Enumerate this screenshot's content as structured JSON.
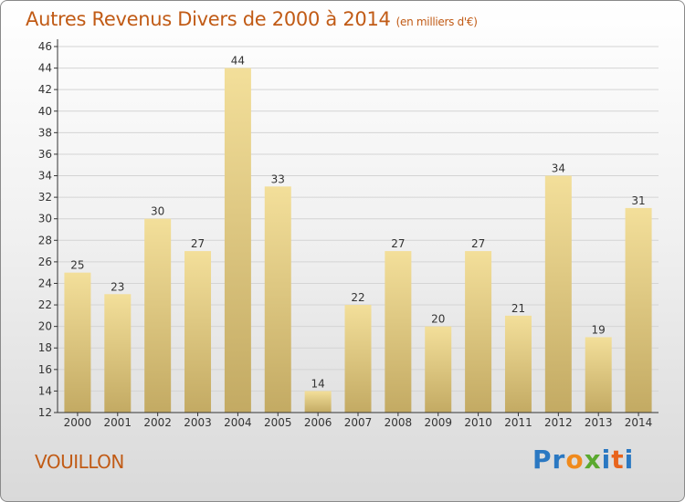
{
  "title": "Autres Revenus Divers de 2000 à 2014",
  "unit_label": "(en milliers d'€)",
  "commune": "VOUILLON",
  "logo": {
    "text": "Proxiti",
    "letters": [
      {
        "ch": "P",
        "color": "#2a78c2"
      },
      {
        "ch": "r",
        "color": "#2a78c2"
      },
      {
        "ch": "o",
        "color": "#f08a1c"
      },
      {
        "ch": "x",
        "color": "#5aa92f"
      },
      {
        "ch": "i",
        "color": "#2a78c2"
      },
      {
        "ch": "t",
        "color": "#e8641c"
      },
      {
        "ch": "i",
        "color": "#2a78c2"
      }
    ]
  },
  "colors": {
    "title": "#c15b16",
    "bar_light": "#f3df9a",
    "bar_dark": "#c3aa63",
    "axis": "#333333",
    "grid": "#d4d4d4",
    "label": "#333333"
  },
  "chart_data": {
    "type": "bar",
    "title": "Autres Revenus Divers de 2000 à 2014",
    "subtitle": "(en milliers d'€)",
    "categories": [
      "2000",
      "2001",
      "2002",
      "2003",
      "2004",
      "2005",
      "2006",
      "2007",
      "2008",
      "2009",
      "2010",
      "2011",
      "2012",
      "2013",
      "2014"
    ],
    "values": [
      25,
      23,
      30,
      27,
      44,
      33,
      14,
      22,
      27,
      20,
      27,
      21,
      34,
      19,
      31
    ],
    "ylim": [
      12,
      46
    ],
    "yticks": [
      12,
      14,
      16,
      18,
      20,
      22,
      24,
      26,
      28,
      30,
      32,
      34,
      36,
      38,
      40,
      42,
      44,
      46
    ],
    "grid": true,
    "data_labels": true
  }
}
